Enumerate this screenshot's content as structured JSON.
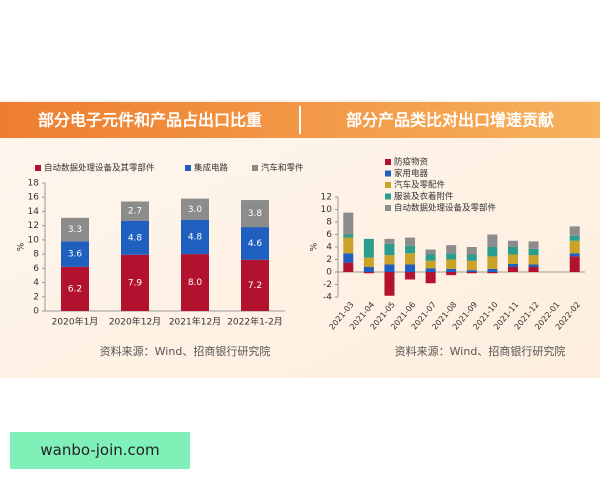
{
  "chart_data": [
    {
      "type": "bar",
      "stacked": true,
      "title": "部分电子元件和产品占出口比重",
      "source": "资料来源：Wind、招商银行研究院",
      "ylabel": "%",
      "categories": [
        "2020年1月",
        "2020年12月",
        "2021年12月",
        "2022年1-2月"
      ],
      "series": [
        {
          "name": "自动数据处理设备及其零部件",
          "color": "#b3122e",
          "values": [
            6.2,
            7.9,
            8.0,
            7.2
          ],
          "value_labels": [
            "6.2",
            "7.9",
            "8.0",
            "7.2"
          ]
        },
        {
          "name": "集成电路",
          "color": "#1f5fbf",
          "values": [
            3.6,
            4.8,
            4.8,
            4.6
          ],
          "value_labels": [
            "3.6",
            "4.8",
            "4.8",
            "4.6"
          ]
        },
        {
          "name": "汽车和零件",
          "color": "#8c8c8c",
          "values": [
            3.3,
            2.7,
            3.0,
            3.8
          ],
          "value_labels": [
            "3.3",
            "2.7",
            "3.0",
            "3.8"
          ]
        }
      ],
      "ylim": [
        0,
        18
      ],
      "yticks": [
        0,
        2,
        4,
        6,
        8,
        10,
        12,
        14,
        16,
        18
      ]
    },
    {
      "type": "bar",
      "stacked": true,
      "title": "部分产品类比对出口增速贡献",
      "source": "资料来源：Wind、招商银行研究院",
      "ylabel": "%",
      "categories": [
        "2021-03",
        "2021-04",
        "2021-05",
        "2021-06",
        "2021-07",
        "2021-08",
        "2021-09",
        "2021-10",
        "2021-11",
        "2021-12",
        "2022-01",
        "2022-02"
      ],
      "series": [
        {
          "name": "防疫物资",
          "color": "#b3122e",
          "values": [
            1.5,
            -0.2,
            -3.8,
            -1.2,
            -1.8,
            -0.5,
            -0.2,
            -0.2,
            0.8,
            0.8,
            null,
            2.5
          ]
        },
        {
          "name": "家用电器",
          "color": "#1f5fbf",
          "values": [
            1.5,
            0.8,
            1.2,
            1.2,
            0.6,
            0.5,
            0.3,
            0.5,
            0.5,
            0.4,
            null,
            0.5
          ]
        },
        {
          "name": "汽车及零配件",
          "color": "#c9a227",
          "values": [
            2.5,
            1.5,
            1.5,
            1.8,
            1.2,
            1.5,
            1.5,
            2.0,
            1.5,
            1.5,
            null,
            2.0
          ]
        },
        {
          "name": "服装及衣着附件",
          "color": "#2a9d8f",
          "values": [
            0.5,
            3.0,
            1.8,
            1.2,
            1.0,
            1.0,
            1.0,
            1.5,
            1.2,
            1.0,
            null,
            0.8
          ]
        },
        {
          "name": "自动数据处理设备及零部件",
          "color": "#8c8c8c",
          "values": [
            3.5,
            0,
            0.8,
            1.3,
            0.8,
            1.3,
            1.2,
            2.0,
            1.0,
            1.2,
            null,
            1.5
          ]
        }
      ],
      "ylim": [
        -4,
        12
      ],
      "yticks": [
        -4,
        -2,
        0,
        2,
        4,
        6,
        8,
        10,
        12
      ]
    }
  ],
  "watermark": "wanbo-join.com"
}
